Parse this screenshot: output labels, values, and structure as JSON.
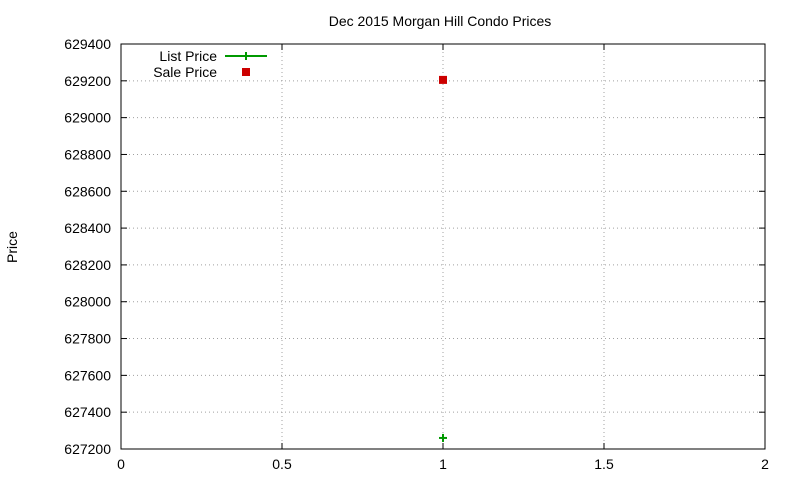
{
  "chart_data": {
    "type": "scatter",
    "title": "Dec 2015 Morgan Hill Condo Prices",
    "xlabel": "",
    "ylabel": "Price",
    "xlim": [
      0,
      2
    ],
    "ylim": [
      627200,
      629400
    ],
    "x_ticks": [
      0,
      0.5,
      1,
      1.5,
      2
    ],
    "x_tick_labels": [
      "0",
      "0.5",
      "1",
      "1.5",
      "2"
    ],
    "y_ticks": [
      627200,
      627400,
      627600,
      627800,
      628000,
      628200,
      628400,
      628600,
      628800,
      629000,
      629200,
      629400
    ],
    "y_tick_labels": [
      "627200",
      "627400",
      "627600",
      "627800",
      "628000",
      "628200",
      "628400",
      "628600",
      "628800",
      "629000",
      "629200",
      "629400"
    ],
    "grid": true,
    "legend_position": "top-left",
    "series": [
      {
        "name": "List Price",
        "marker": "plus",
        "color": "#009900",
        "points": [
          {
            "x": 1,
            "y": 627260
          }
        ]
      },
      {
        "name": "Sale Price",
        "marker": "square",
        "color": "#cc0000",
        "points": [
          {
            "x": 1,
            "y": 629205
          }
        ]
      }
    ]
  }
}
